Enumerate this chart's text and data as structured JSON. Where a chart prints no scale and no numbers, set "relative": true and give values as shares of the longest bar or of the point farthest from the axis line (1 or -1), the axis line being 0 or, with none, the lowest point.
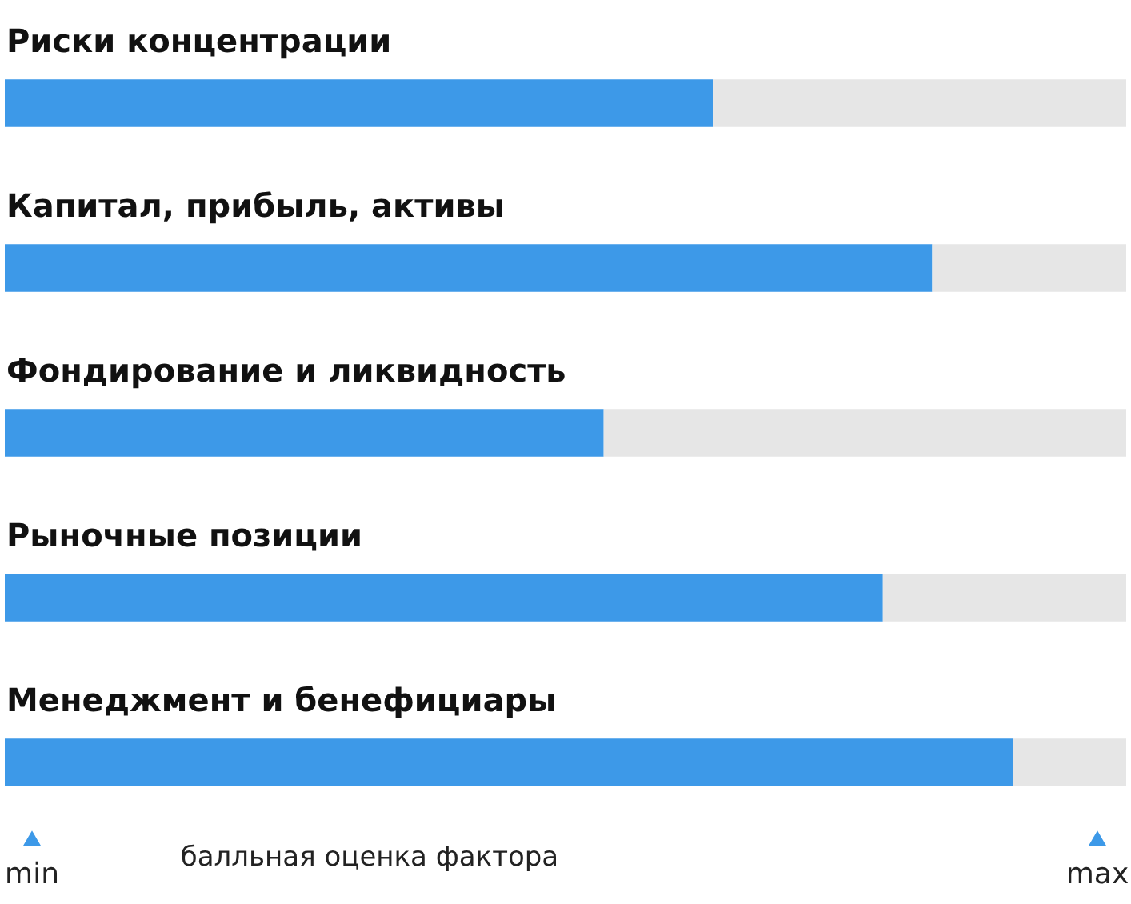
{
  "chart_data": {
    "type": "bar",
    "orientation": "horizontal",
    "stacked": true,
    "relative": true,
    "xlabel": "балльная оценка фактора",
    "categories": [
      "Риски концентрации",
      "Капитал, прибыль, активы",
      "Фондирование и ликвидность",
      "Рыночные позиции",
      "Менеджмент и бенефициары"
    ],
    "series": [
      {
        "color": "#3d99e8",
        "values": [
          0.632,
          0.827,
          0.534,
          0.783,
          0.899
        ]
      },
      {
        "color": "#e6e6e6",
        "values": [
          0.368,
          0.173,
          0.466,
          0.217,
          0.101
        ]
      }
    ],
    "annotations": [
      "min",
      "max"
    ]
  }
}
